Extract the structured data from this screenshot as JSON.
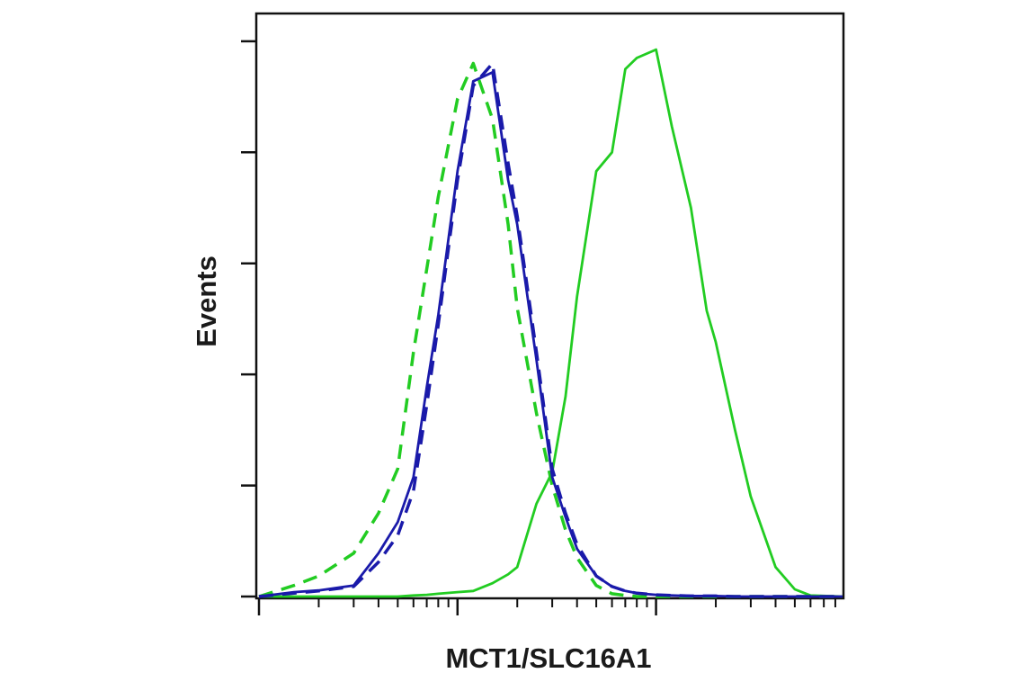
{
  "chart_data": {
    "type": "line",
    "x_label": "MCT1/SLC16A1",
    "y_label": "Events",
    "x": [
      1,
      1.5,
      2,
      3,
      4,
      5,
      6,
      7,
      8,
      10,
      12,
      15,
      18,
      20,
      25,
      30,
      35,
      40,
      50,
      60,
      70,
      80,
      100,
      120,
      150,
      180,
      200,
      250,
      300,
      400,
      500,
      600,
      870
    ],
    "x_log": true,
    "xlim": [
      1,
      870
    ],
    "xticks": [
      1,
      10,
      100
    ],
    "xminorticks": [
      2,
      3,
      4,
      5,
      6,
      7,
      8,
      9,
      20,
      30,
      40,
      50,
      60,
      70,
      80,
      90,
      200,
      300,
      400,
      500,
      600,
      700,
      800
    ],
    "ylim": [
      0,
      105
    ],
    "yticks": [
      0,
      20,
      40,
      60,
      80,
      100
    ],
    "series": [
      {
        "color": "#22cc22",
        "dashed": false,
        "values": [
          0,
          0,
          0,
          0,
          0,
          0,
          0.2,
          0.3,
          0.5,
          0.8,
          1,
          2.4,
          4,
          5.3,
          16.7,
          22.4,
          36,
          54,
          76.6,
          80,
          95,
          97,
          98.5,
          84.7,
          70,
          51.5,
          45.8,
          30,
          18,
          5.3,
          1.3,
          0.2,
          0
        ]
      },
      {
        "color": "#22cc22",
        "dashed": true,
        "values": [
          0,
          2,
          3.7,
          7.8,
          15,
          23,
          44,
          59,
          72,
          89.6,
          96,
          86,
          67,
          52,
          33,
          20,
          12,
          7,
          2,
          0.5,
          0.2,
          0,
          0,
          0,
          0,
          0,
          0,
          0,
          0,
          0,
          0,
          0,
          0
        ]
      },
      {
        "color": "#1a1aaa",
        "dashed": false,
        "values": [
          0,
          0.8,
          1.1,
          2,
          7.8,
          13.4,
          21.5,
          37.7,
          50.7,
          76.6,
          92.8,
          94.4,
          75,
          67,
          42.6,
          21.5,
          14.3,
          8.6,
          3.7,
          1.8,
          1,
          0.6,
          0.3,
          0.2,
          0.1,
          0.1,
          0.1,
          0,
          0,
          0,
          0,
          0,
          0
        ]
      },
      {
        "color": "#1a1aaa",
        "dashed": true,
        "values": [
          0,
          0.6,
          1,
          1.8,
          6.2,
          11,
          19,
          34.5,
          49,
          75,
          92,
          96,
          78,
          68.5,
          44,
          23,
          15,
          9.4,
          3.7,
          1.8,
          1,
          0.6,
          0.3,
          0.2,
          0.1,
          0.1,
          0.1,
          0,
          0,
          0,
          0,
          0,
          0
        ]
      }
    ]
  }
}
